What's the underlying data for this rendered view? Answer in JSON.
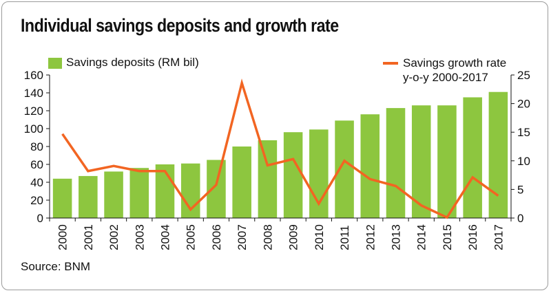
{
  "title": "Individual savings deposits and growth rate",
  "source": "Source: BNM",
  "colors": {
    "bar": "#8dc63f",
    "line": "#f26522"
  },
  "chart_data": {
    "type": "bar",
    "title": "Individual savings deposits and growth rate",
    "categories": [
      "2000",
      "2001",
      "2002",
      "2003",
      "2004",
      "2005",
      "2006",
      "2007",
      "2008",
      "2009",
      "2010",
      "2011",
      "2012",
      "2013",
      "2014",
      "2015",
      "2016",
      "2017"
    ],
    "series": [
      {
        "name": "Savings deposits (RM bil)",
        "type": "bar",
        "axis": "left",
        "values": [
          44,
          47,
          52,
          56,
          60,
          61,
          65,
          80,
          87,
          96,
          99,
          109,
          116,
          123,
          126,
          126,
          135,
          141
        ]
      },
      {
        "name": "Savings growth rate y-o-y 2000-2017",
        "type": "line",
        "axis": "right",
        "values": [
          14.7,
          8.2,
          9.1,
          8.2,
          8.2,
          1.5,
          5.8,
          23.6,
          9.2,
          10.3,
          2.5,
          10.0,
          6.8,
          5.6,
          2.2,
          0.1,
          7.1,
          3.9
        ]
      }
    ],
    "legend": [
      "Savings deposits (RM bil)",
      "Savings growth rate",
      "y-o-y 2000-2017"
    ],
    "y_left": {
      "min": 0,
      "max": 160,
      "ticks": [
        "0",
        "20",
        "40",
        "60",
        "80",
        "100",
        "120",
        "140",
        "160"
      ]
    },
    "y_right": {
      "min": 0,
      "max": 25,
      "ticks": [
        "0",
        "5",
        "10",
        "15",
        "20",
        "25"
      ]
    },
    "grid": false,
    "legend_placement": "top"
  }
}
